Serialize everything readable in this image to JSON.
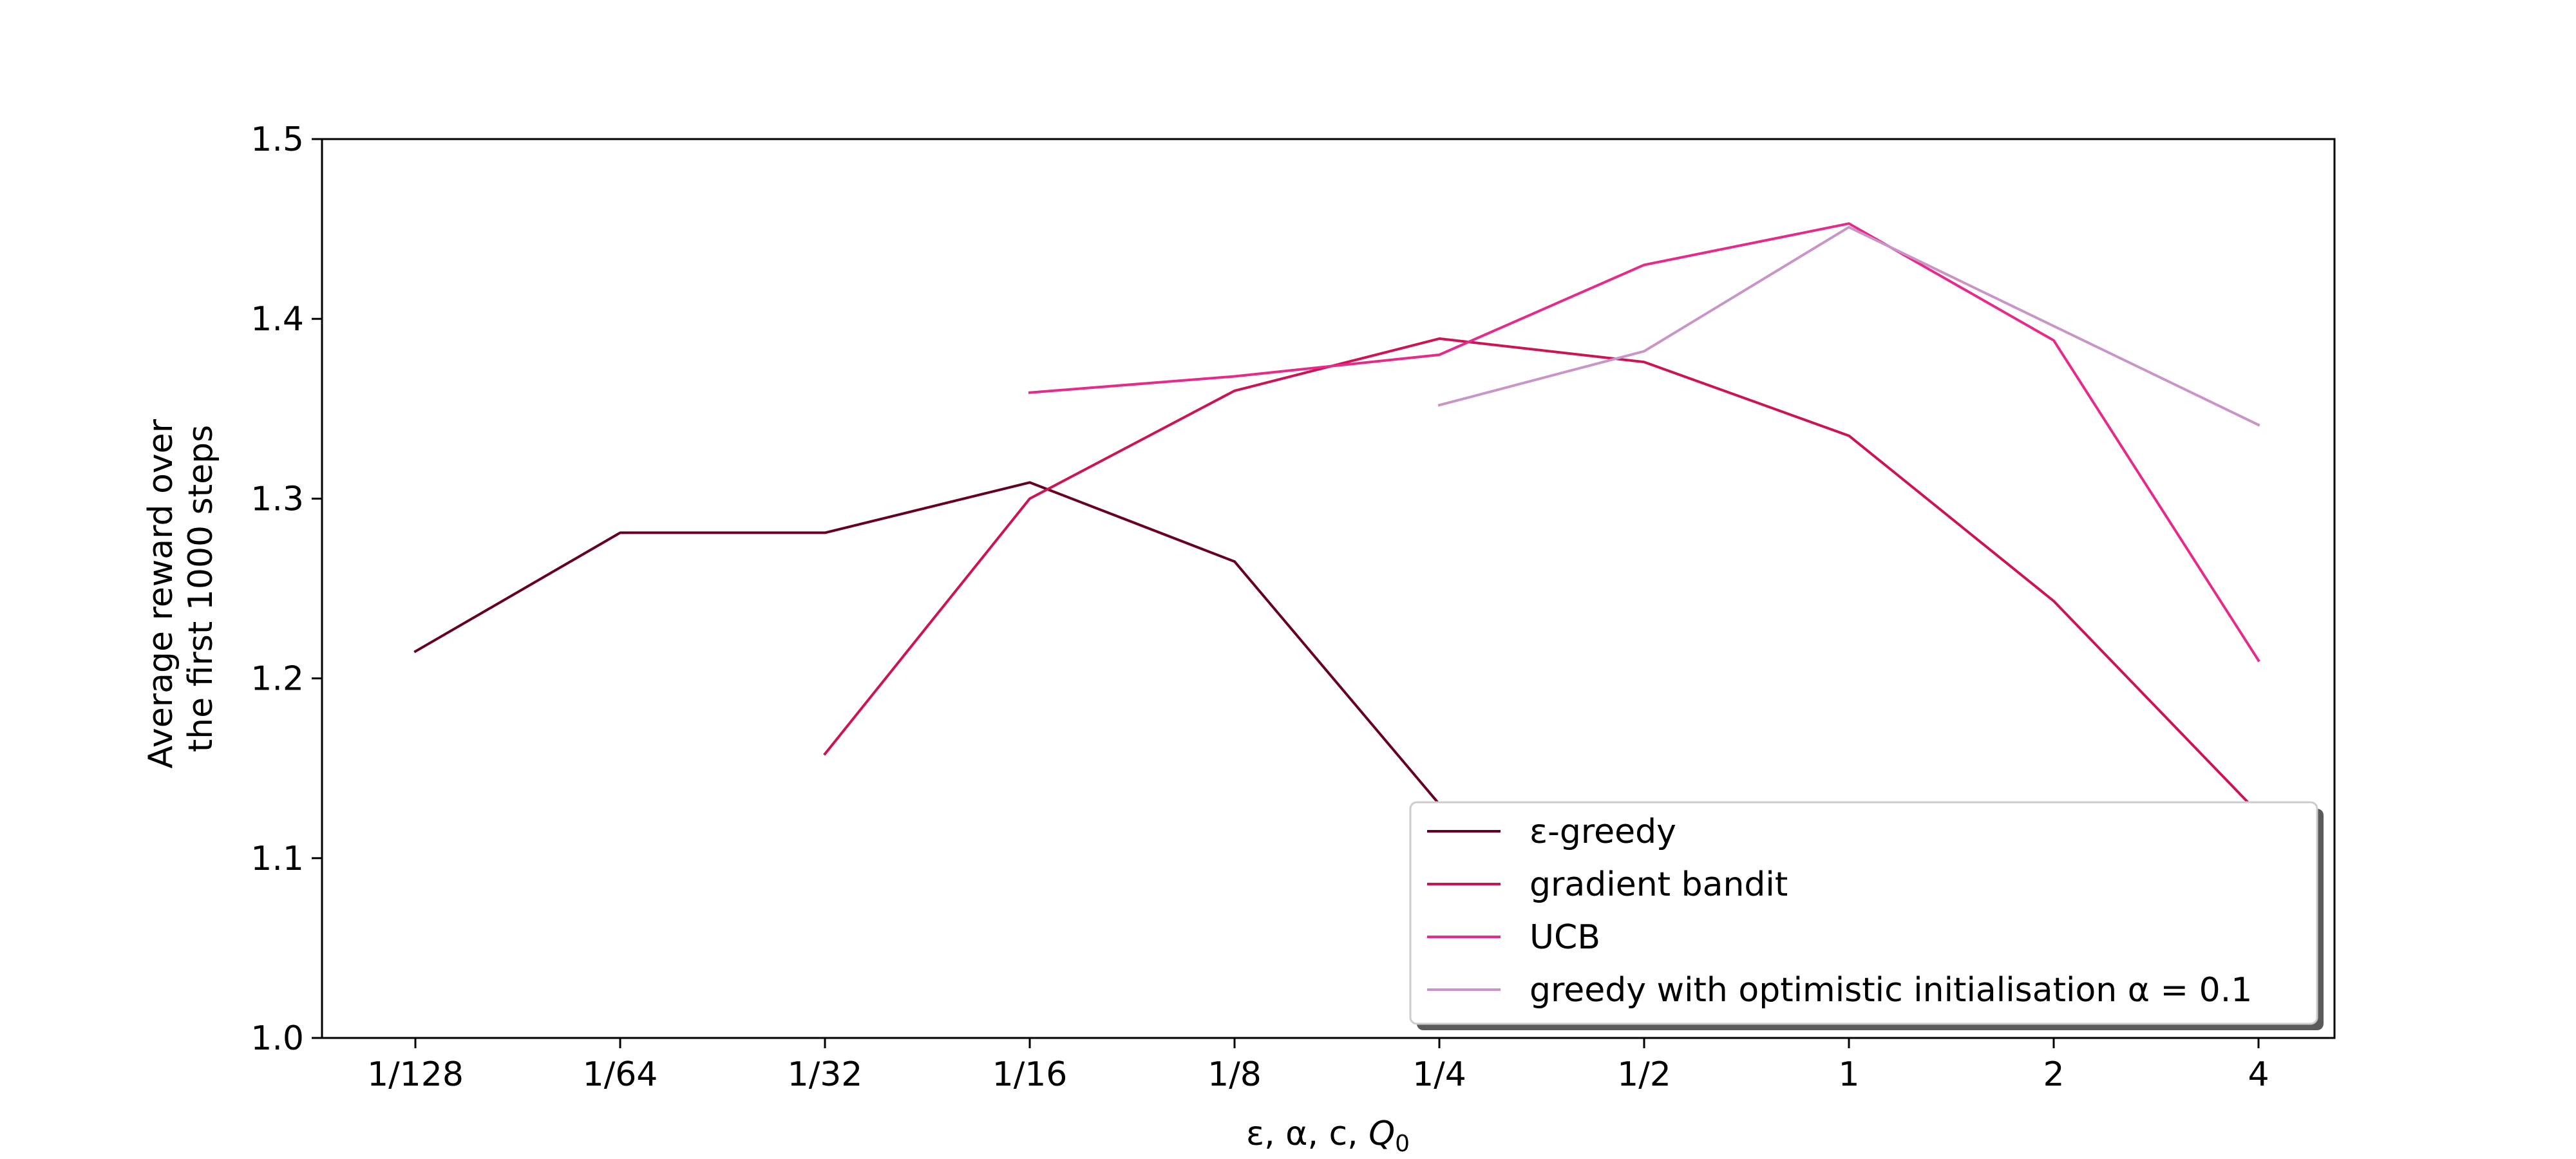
{
  "chart_data": {
    "type": "line",
    "categories": [
      "1/128",
      "1/64",
      "1/32",
      "1/16",
      "1/8",
      "1/4",
      "1/2",
      "1",
      "2",
      "4"
    ],
    "xlabel": "ε, α, c, Q₀",
    "xlabel_main": "ε, α, c, ",
    "xlabel_italic": "Q",
    "xlabel_sub": "0",
    "ylabel_lines": [
      "Average reward over",
      "the first 1000 steps"
    ],
    "ylim": [
      1.0,
      1.5
    ],
    "yticks": [
      "1.0",
      "1.1",
      "1.2",
      "1.3",
      "1.4",
      "1.5"
    ],
    "ytick_values": [
      1.0,
      1.1,
      1.2,
      1.3,
      1.4,
      1.5
    ],
    "grid": false,
    "legend_position": "bottom-right",
    "series": [
      {
        "name": "ε-greedy",
        "color": "#67001f",
        "values": [
          1.215,
          1.281,
          1.281,
          1.309,
          1.265,
          1.13,
          null,
          null,
          null,
          null
        ]
      },
      {
        "name": "gradient bandit",
        "color": "#ce1256",
        "values": [
          null,
          null,
          1.158,
          1.3,
          1.36,
          1.389,
          1.376,
          1.335,
          1.243,
          1.125
        ]
      },
      {
        "name": "UCB",
        "color": "#e7298a",
        "values": [
          null,
          null,
          null,
          1.359,
          1.368,
          1.38,
          1.43,
          1.453,
          1.388,
          1.21
        ]
      },
      {
        "name": "greedy with optimistic initialisation α = 0.1",
        "color": "#c994c7",
        "values": [
          null,
          null,
          null,
          null,
          null,
          1.352,
          1.382,
          1.451,
          1.396,
          1.341
        ]
      }
    ]
  }
}
